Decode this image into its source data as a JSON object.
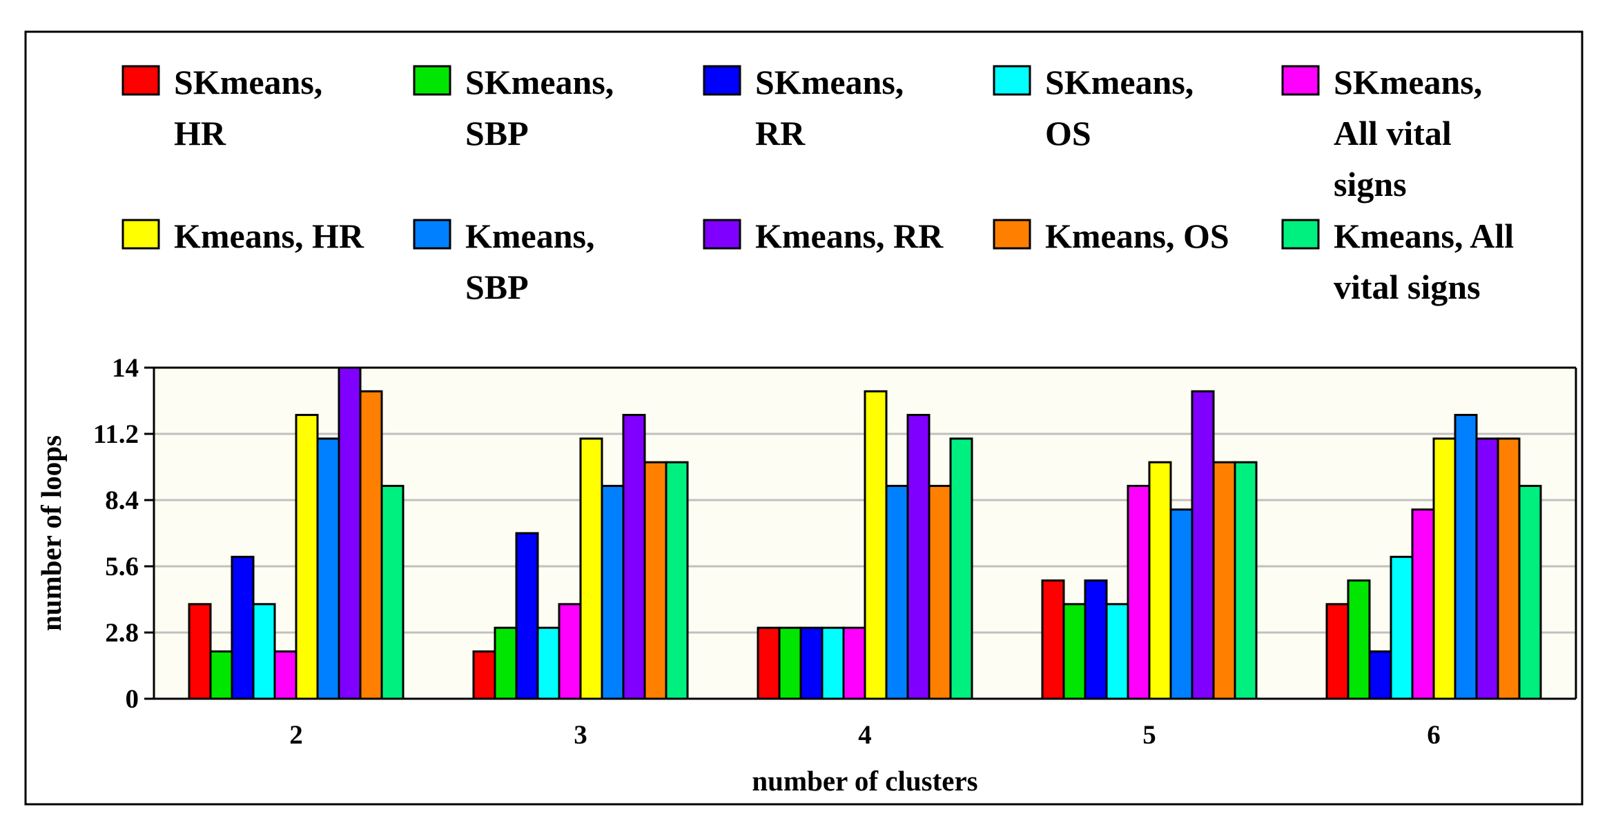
{
  "chart_data": {
    "type": "bar",
    "title": "",
    "xlabel": "number of clusters",
    "ylabel": "number of loops",
    "categories": [
      "2",
      "3",
      "4",
      "5",
      "6"
    ],
    "ylim": [
      0,
      14
    ],
    "yticks": [
      "0",
      "2.8",
      "5.6",
      "8.4",
      "11.2",
      "14"
    ],
    "ytick_values": [
      0,
      2.8,
      5.6,
      8.4,
      11.2,
      14
    ],
    "grid": true,
    "legend_position": "top",
    "series": [
      {
        "name": "SKmeans, HR",
        "legend_lines": [
          "SKmeans,",
          "HR"
        ],
        "color": "#ff0000",
        "values": [
          4,
          2,
          3,
          5,
          4
        ]
      },
      {
        "name": "SKmeans, SBP",
        "legend_lines": [
          "SKmeans,",
          "SBP"
        ],
        "color": "#00e600",
        "values": [
          2,
          3,
          3,
          4,
          5
        ]
      },
      {
        "name": "SKmeans, RR",
        "legend_lines": [
          "SKmeans,",
          "RR"
        ],
        "color": "#0000ff",
        "values": [
          6,
          7,
          3,
          5,
          2
        ]
      },
      {
        "name": "SKmeans, OS",
        "legend_lines": [
          "SKmeans,",
          "OS"
        ],
        "color": "#00ffff",
        "values": [
          4,
          3,
          3,
          4,
          6
        ]
      },
      {
        "name": "SKmeans, All vital signs",
        "legend_lines": [
          "SKmeans,",
          "All vital",
          "signs"
        ],
        "color": "#ff00ff",
        "values": [
          2,
          4,
          3,
          9,
          8
        ]
      },
      {
        "name": "Kmeans, HR",
        "legend_lines": [
          "Kmeans, HR"
        ],
        "color": "#ffff00",
        "values": [
          12,
          11,
          13,
          10,
          11
        ]
      },
      {
        "name": "Kmeans, SBP",
        "legend_lines": [
          "Kmeans,",
          "SBP"
        ],
        "color": "#0080ff",
        "values": [
          11,
          9,
          9,
          8,
          12
        ]
      },
      {
        "name": "Kmeans, RR",
        "legend_lines": [
          "Kmeans, RR"
        ],
        "color": "#8000ff",
        "values": [
          14,
          12,
          12,
          13,
          11
        ]
      },
      {
        "name": "Kmeans, OS",
        "legend_lines": [
          "Kmeans, OS"
        ],
        "color": "#ff8000",
        "values": [
          13,
          10,
          9,
          10,
          11
        ]
      },
      {
        "name": "Kmeans, All vital signs",
        "legend_lines": [
          "Kmeans, All",
          "vital signs"
        ],
        "color": "#00f080",
        "values": [
          9,
          10,
          11,
          10,
          9
        ]
      }
    ],
    "colors": {
      "plot_background": "#fdfdf3",
      "gridline": "#c0c0c0",
      "frame": "#000000"
    }
  }
}
